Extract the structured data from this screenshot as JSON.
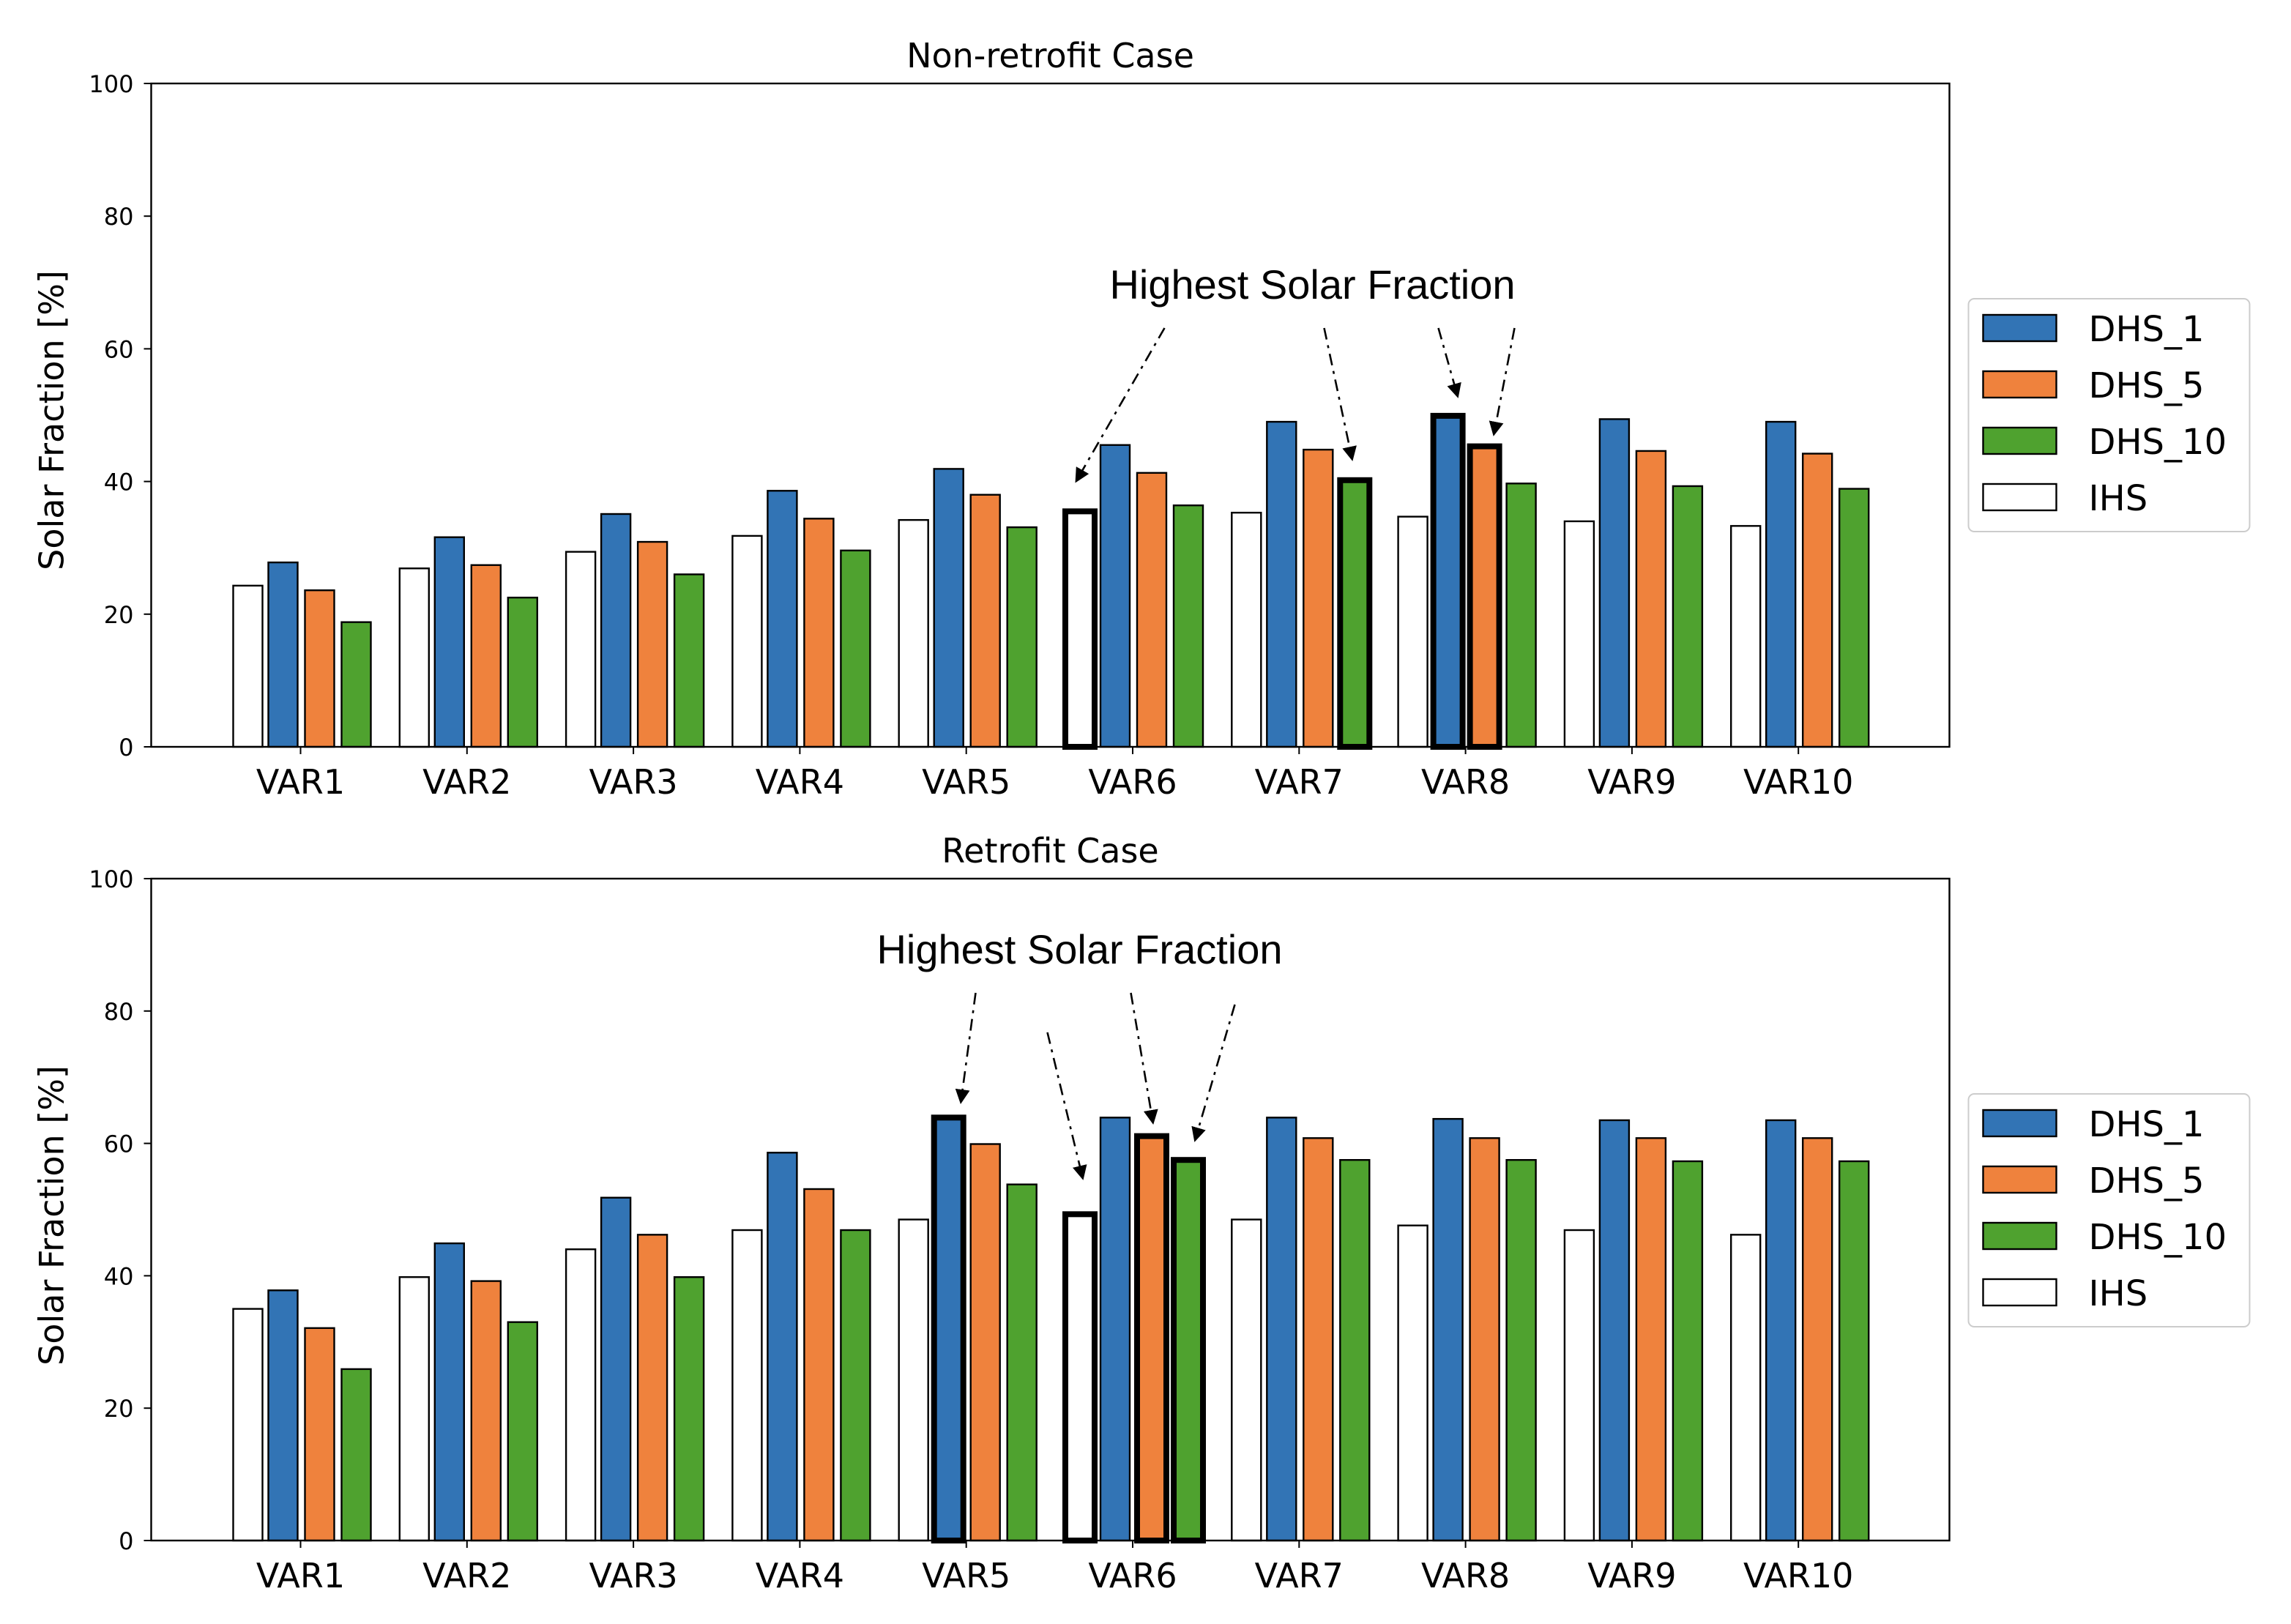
{
  "chart_data": [
    {
      "type": "bar",
      "title": "Non-retrofit Case",
      "xlabel": "",
      "ylabel": "Solar Fraction [%]",
      "ylim": [
        0,
        100
      ],
      "yticks": [
        0,
        20,
        40,
        60,
        80,
        100
      ],
      "categories": [
        "VAR1",
        "VAR2",
        "VAR3",
        "VAR4",
        "VAR5",
        "VAR6",
        "VAR7",
        "VAR8",
        "VAR9",
        "VAR10"
      ],
      "legend_position": "right",
      "grid": false,
      "series": [
        {
          "name": "IHS",
          "color": "#ffffff",
          "values": [
            24.3,
            26.9,
            29.4,
            31.8,
            34.2,
            35.5,
            35.3,
            34.7,
            34.0,
            33.3
          ]
        },
        {
          "name": "DHS_1",
          "color": "#3274b5",
          "values": [
            27.8,
            31.6,
            35.1,
            38.6,
            41.9,
            45.5,
            49.0,
            49.9,
            49.4,
            49.0
          ]
        },
        {
          "name": "DHS_5",
          "color": "#ef823d",
          "values": [
            23.6,
            27.4,
            30.9,
            34.4,
            38.0,
            41.3,
            44.8,
            45.3,
            44.6,
            44.2
          ]
        },
        {
          "name": "DHS_10",
          "color": "#4fa22f",
          "values": [
            18.8,
            22.5,
            26.0,
            29.6,
            33.1,
            36.4,
            40.2,
            39.7,
            39.3,
            38.9
          ]
        }
      ],
      "legend_order": [
        "DHS_1",
        "DHS_5",
        "DHS_10",
        "IHS"
      ],
      "annotation": {
        "text": "Highest Solar Fraction",
        "highlighted": [
          {
            "category": "VAR6",
            "series": "IHS"
          },
          {
            "category": "VAR7",
            "series": "DHS_10"
          },
          {
            "category": "VAR8",
            "series": "DHS_1"
          },
          {
            "category": "VAR8",
            "series": "DHS_5"
          }
        ]
      }
    },
    {
      "type": "bar",
      "title": "Retrofit Case",
      "xlabel": "",
      "ylabel": "Solar Fraction [%]",
      "ylim": [
        0,
        100
      ],
      "yticks": [
        0,
        20,
        40,
        60,
        80,
        100
      ],
      "categories": [
        "VAR1",
        "VAR2",
        "VAR3",
        "VAR4",
        "VAR5",
        "VAR6",
        "VAR7",
        "VAR8",
        "VAR9",
        "VAR10"
      ],
      "legend_position": "right",
      "grid": false,
      "series": [
        {
          "name": "IHS",
          "color": "#ffffff",
          "values": [
            35.0,
            39.8,
            44.0,
            46.9,
            48.5,
            49.3,
            48.5,
            47.6,
            46.9,
            46.2
          ]
        },
        {
          "name": "DHS_1",
          "color": "#3274b5",
          "values": [
            37.8,
            44.9,
            51.8,
            58.6,
            63.9,
            63.9,
            63.9,
            63.7,
            63.5,
            63.5
          ]
        },
        {
          "name": "DHS_5",
          "color": "#ef823d",
          "values": [
            32.1,
            39.2,
            46.2,
            53.1,
            59.9,
            61.1,
            60.8,
            60.8,
            60.8,
            60.8
          ]
        },
        {
          "name": "DHS_10",
          "color": "#4fa22f",
          "values": [
            25.9,
            33.0,
            39.8,
            46.9,
            53.8,
            57.5,
            57.5,
            57.5,
            57.3,
            57.3
          ]
        }
      ],
      "legend_order": [
        "DHS_1",
        "DHS_5",
        "DHS_10",
        "IHS"
      ],
      "annotation": {
        "text": "Highest Solar Fraction",
        "highlighted": [
          {
            "category": "VAR5",
            "series": "DHS_1"
          },
          {
            "category": "VAR6",
            "series": "IHS"
          },
          {
            "category": "VAR6",
            "series": "DHS_5"
          },
          {
            "category": "VAR6",
            "series": "DHS_10"
          }
        ]
      }
    }
  ]
}
